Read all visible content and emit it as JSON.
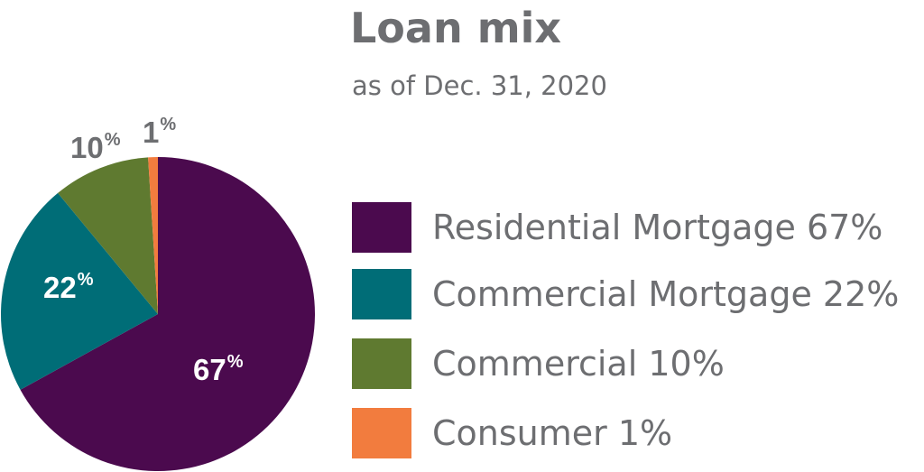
{
  "chart_data": {
    "type": "pie",
    "title": "Loan mix",
    "subtitle": "as of Dec. 31, 2020",
    "legend_position": "right",
    "slices": [
      {
        "name": "Residential Mortgage",
        "value": 67,
        "color": "#4b0a4e",
        "label": "67",
        "legend_label": "Residential Mortgage 67%",
        "label_color": "#ffffff"
      },
      {
        "name": "Commercial Mortgage",
        "value": 22,
        "color": "#006d77",
        "label": "22",
        "legend_label": "Commercial Mortgage 22%",
        "label_color": "#ffffff"
      },
      {
        "name": "Commercial",
        "value": 10,
        "color": "#5f7a30",
        "label": "10",
        "legend_label": "Commercial 10%",
        "label_color": "#6d6e71"
      },
      {
        "name": "Consumer",
        "value": 1,
        "color": "#f27c3e",
        "label": "1",
        "legend_label": "Consumer 1%",
        "label_color": "#6d6e71"
      }
    ],
    "percent_symbol": "%"
  }
}
